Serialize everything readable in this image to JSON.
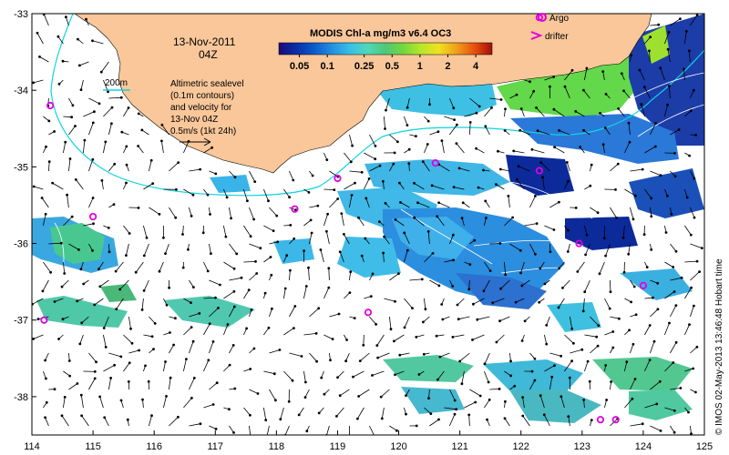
{
  "map": {
    "date": "13-Nov-2011",
    "time": "04Z",
    "isobath_label": "200m",
    "sealevel_note": [
      "Altimetric sealevel",
      "(0.1m contours)",
      "and velocity for",
      "13-Nov 04Z",
      "0.5m/s (1kt 24h)"
    ],
    "credit": "© IMOS 02-May-2013 13:46:48 Hobart time",
    "lon_ticks": [
      "114",
      "115",
      "116",
      "117",
      "118",
      "119",
      "120",
      "121",
      "122",
      "123",
      "124",
      "125"
    ],
    "lat_ticks": [
      "-33",
      "-34",
      "-35",
      "-36",
      "-37",
      "-38"
    ],
    "lon_range": [
      114,
      125
    ],
    "lat_range": [
      -33,
      -38.5
    ]
  },
  "colorbar": {
    "title": "MODIS Chl-a mg/m3 v6.4 OC3",
    "ticks": [
      "0.05",
      "0.1",
      "0.25",
      "0.5",
      "1",
      "2",
      "4"
    ],
    "tick_values": [
      0.05,
      0.1,
      0.25,
      0.5,
      1,
      2,
      4
    ],
    "range": [
      0.03,
      6
    ],
    "colors": [
      "#1b0a7a",
      "#0a2ea8",
      "#0a5ccc",
      "#2490e0",
      "#38c0e8",
      "#50d8b8",
      "#4ec878",
      "#72d83c",
      "#b6e82a",
      "#f0e020",
      "#f0a018",
      "#e85010",
      "#a01008"
    ]
  },
  "legend": {
    "argo_label": "Argo",
    "drifter_label": "drifter"
  },
  "colors": {
    "land": "#f9c79a",
    "isobath": "#10d4e0",
    "marker": "#e000e0",
    "contour": "#ffffff"
  },
  "argo_floats": [
    {
      "lon": 114.3,
      "lat": -34.2
    },
    {
      "lon": 114.2,
      "lat": -37.0
    },
    {
      "lon": 115.0,
      "lat": -35.65
    },
    {
      "lon": 118.3,
      "lat": -35.55
    },
    {
      "lon": 119.0,
      "lat": -35.15
    },
    {
      "lon": 119.5,
      "lat": -36.9
    },
    {
      "lon": 120.6,
      "lat": -34.95
    },
    {
      "lon": 122.3,
      "lat": -35.05
    },
    {
      "lon": 122.95,
      "lat": -36.0
    },
    {
      "lon": 124.0,
      "lat": -36.55
    },
    {
      "lon": 123.3,
      "lat": -38.3
    },
    {
      "lon": 123.55,
      "lat": -38.3
    },
    {
      "lon": 122.3,
      "lat": -33.05
    }
  ]
}
